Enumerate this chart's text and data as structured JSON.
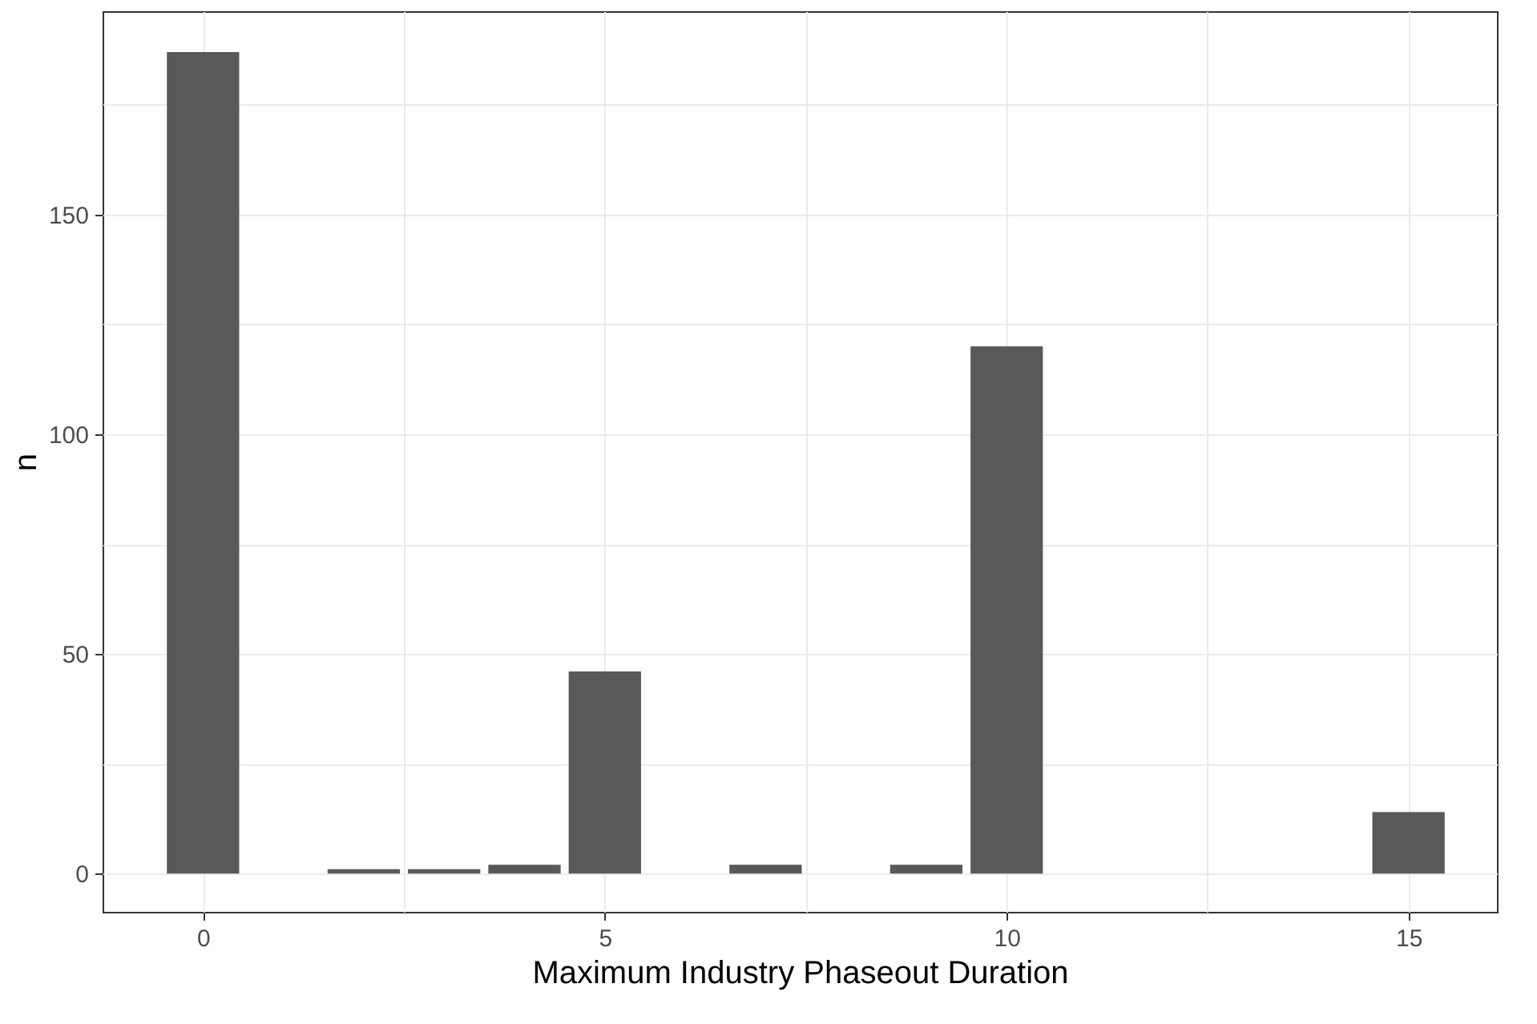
{
  "chart_data": {
    "type": "bar",
    "xlabel": "Maximum Industry Phaseout Duration",
    "ylabel": "n",
    "x": [
      0,
      2,
      3,
      4,
      5,
      7,
      9,
      10,
      15
    ],
    "values": [
      187,
      1,
      1,
      2,
      46,
      2,
      2,
      120,
      14
    ],
    "color": "#595959",
    "xlim": [
      -1.25,
      16.1
    ],
    "xticks": [
      0,
      {
        "value": 2.5,
        "label": null
      },
      5,
      {
        "value": 7.5,
        "label": null
      },
      10,
      {
        "value": 12.5,
        "label": null
      },
      15
    ],
    "ylim": [
      -8.7,
      196.3
    ],
    "yticks": [
      0,
      {
        "value": 25,
        "label": null
      },
      50,
      {
        "value": 75,
        "label": null
      },
      100,
      {
        "value": 125,
        "label": null
      },
      150,
      {
        "value": 175,
        "label": null
      }
    ],
    "grid": true
  }
}
